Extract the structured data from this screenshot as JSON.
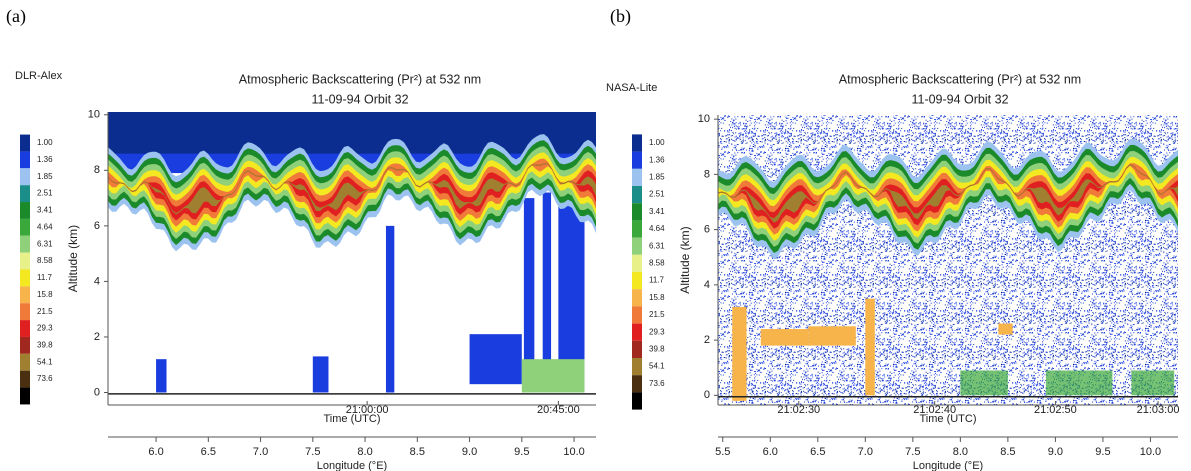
{
  "panels": [
    "(a)",
    "(b)"
  ],
  "chart_data": [
    {
      "type": "heatmap",
      "instrument": "DLR-Alex",
      "title": "Atmospheric Backscattering (Pr²) at 532 nm",
      "subtitle": "11-09-94 Orbit 32",
      "ylabel": "Altitude (km)",
      "ylim": [
        -0.45,
        10.1
      ],
      "yticks": [
        0,
        2,
        4,
        6,
        8,
        10
      ],
      "xlabel": "Longitude (°E)",
      "xlim": [
        5.54,
        10.21
      ],
      "xticks": [
        {
          "value": 6,
          "label": "6.0"
        },
        {
          "value": 6.5,
          "label": "6.5"
        },
        {
          "value": 7,
          "label": "7.0"
        },
        {
          "value": 7.5,
          "label": "7.5"
        },
        {
          "value": 8,
          "label": "8.0"
        },
        {
          "value": 8.5,
          "label": "8.5"
        },
        {
          "value": 9,
          "label": "9.0"
        },
        {
          "value": 9.5,
          "label": "9.5"
        },
        {
          "value": 10,
          "label": "10.0"
        }
      ],
      "time_label": "Time (UTC)",
      "time_ticks": [
        {
          "value": 8.02,
          "label": "21:00:00"
        },
        {
          "value": 9.85,
          "label": "20:45:00"
        }
      ],
      "colorbar": {
        "levels": [
          {
            "value": 1,
            "label": "1.00"
          },
          {
            "value": 1.36,
            "label": "1.36"
          },
          {
            "value": 1.85,
            "label": "1.85"
          },
          {
            "value": 2.51,
            "label": "2.51"
          },
          {
            "value": 3.41,
            "label": "3.41"
          },
          {
            "value": 4.64,
            "label": "4.64"
          },
          {
            "value": 6.31,
            "label": "6.31"
          },
          {
            "value": 8.58,
            "label": "8.58"
          },
          {
            "value": 11.7,
            "label": "11.7"
          },
          {
            "value": 15.8,
            "label": "15.8"
          },
          {
            "value": 21.5,
            "label": "21.5"
          },
          {
            "value": 29.3,
            "label": "29.3"
          },
          {
            "value": 39.8,
            "label": "39.8"
          },
          {
            "value": 54.1,
            "label": "54.1"
          },
          {
            "value": 73.6,
            "label": "73.6"
          }
        ],
        "colors": [
          "#0a2d8f",
          "#1a3de0",
          "#9cc3ef",
          "#1c8e8a",
          "#1a8a2a",
          "#3aa83a",
          "#8fd07a",
          "#e8f08a",
          "#f4e820",
          "#f6b44a",
          "#f07a3a",
          "#e02020",
          "#a0281e",
          "#a08030",
          "#4a3010",
          "#000000"
        ]
      }
    },
    {
      "type": "heatmap",
      "instrument": "NASA-Lite",
      "title": "Atmospheric Backscattering (Pr²) at 532 nm",
      "subtitle": "11-09-94 Orbit 32",
      "ylabel": "Altitude (km)",
      "ylim": [
        -0.35,
        10.15
      ],
      "yticks": [
        0,
        2,
        4,
        6,
        8,
        10
      ],
      "xlabel": "Longitude (°E)",
      "xlim": [
        5.45,
        10.29
      ],
      "xticks": [
        5.5,
        {
          "value": 6,
          "label": "6.0"
        },
        6.5,
        {
          "value": 7,
          "label": "7.0"
        },
        7.5,
        {
          "value": 8,
          "label": "8.0"
        },
        8.5,
        {
          "value": 9,
          "label": "9.0"
        },
        9.5,
        {
          "value": 10,
          "label": "10.0"
        }
      ],
      "time_label": "Time (UTC)",
      "time_ticks": [
        {
          "value": 6.3,
          "label": "21:02:30"
        },
        {
          "value": 7.73,
          "label": "21:02:40"
        },
        {
          "value": 9.0,
          "label": "21:02:50"
        },
        {
          "value": 10.08,
          "label": "21:03:00"
        }
      ],
      "colorbar": {
        "levels": [
          {
            "value": 1,
            "label": "1.00"
          },
          {
            "value": 1.36,
            "label": "1.36"
          },
          {
            "value": 1.85,
            "label": "1.85"
          },
          {
            "value": 2.51,
            "label": "2.51"
          },
          {
            "value": 3.41,
            "label": "3.41"
          },
          {
            "value": 4.64,
            "label": "4.64"
          },
          {
            "value": 6.31,
            "label": "6.31"
          },
          {
            "value": 8.58,
            "label": "8.58"
          },
          {
            "value": 11.7,
            "label": "11.7"
          },
          {
            "value": 15.8,
            "label": "15.8"
          },
          {
            "value": 21.5,
            "label": "21.5"
          },
          {
            "value": 29.3,
            "label": "29.3"
          },
          {
            "value": 39.8,
            "label": "39.8"
          },
          {
            "value": 54.1,
            "label": "54.1"
          },
          {
            "value": 73.6,
            "label": "73.6"
          }
        ],
        "colors": [
          "#0a2d8f",
          "#1a3de0",
          "#9cc3ef",
          "#1c8e8a",
          "#1a8a2a",
          "#3aa83a",
          "#8fd07a",
          "#e8f08a",
          "#f4e820",
          "#f6b44a",
          "#f07a3a",
          "#e02020",
          "#a0281e",
          "#a08030",
          "#4a3010",
          "#000000"
        ]
      }
    }
  ]
}
